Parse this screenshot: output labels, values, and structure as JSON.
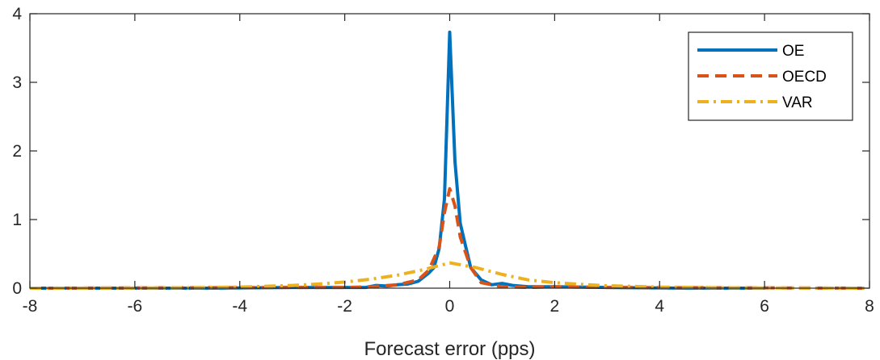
{
  "chart_data": {
    "type": "line",
    "xlabel": "Forecast error (pps)",
    "ylabel": "",
    "xlim": [
      -8,
      8
    ],
    "ylim": [
      0,
      4
    ],
    "xticks": [
      "-8",
      "-6",
      "-4",
      "-2",
      "0",
      "2",
      "4",
      "6",
      "8"
    ],
    "yticks": [
      "0",
      "1",
      "2",
      "3",
      "4"
    ],
    "grid": false,
    "legend_position": "top-right",
    "series": [
      {
        "name": "OE",
        "color": "#0072BD",
        "style": "solid",
        "x": [
          -8,
          -4.5,
          -3,
          -2,
          -1.6,
          -1.4,
          -1.2,
          -1.0,
          -0.8,
          -0.6,
          -0.4,
          -0.3,
          -0.2,
          -0.1,
          0,
          0.1,
          0.2,
          0.3,
          0.4,
          0.6,
          0.8,
          1.0,
          1.2,
          1.5,
          2.0,
          3.0,
          4.5,
          6.0
        ],
        "y": [
          0,
          0,
          0.01,
          0.01,
          0.01,
          0.04,
          0.03,
          0.05,
          0.06,
          0.1,
          0.22,
          0.3,
          0.58,
          1.3,
          3.73,
          1.85,
          0.95,
          0.62,
          0.3,
          0.12,
          0.05,
          0.07,
          0.04,
          0.02,
          0.02,
          0.01,
          0,
          0
        ]
      },
      {
        "name": "OECD",
        "color": "#D95319",
        "style": "dashed",
        "x": [
          -8,
          -3,
          -2,
          -1.5,
          -1.0,
          -0.6,
          -0.4,
          -0.2,
          -0.1,
          0,
          0.1,
          0.2,
          0.4,
          0.6,
          1.0,
          1.5,
          2.0,
          3.0,
          8
        ],
        "y": [
          0,
          0.01,
          0.01,
          0.02,
          0.05,
          0.12,
          0.26,
          0.6,
          1.1,
          1.45,
          1.2,
          0.75,
          0.3,
          0.08,
          0.02,
          0.01,
          0.02,
          0.01,
          0
        ]
      },
      {
        "name": "VAR",
        "color": "#EDB120",
        "style": "dashdot",
        "x": [
          -8,
          -6,
          -5,
          -4,
          -3,
          -2.5,
          -2,
          -1.5,
          -1,
          -0.5,
          0,
          0.5,
          1,
          1.5,
          2,
          2.5,
          3,
          4,
          5,
          6,
          8
        ],
        "y": [
          0,
          0.002,
          0.006,
          0.015,
          0.04,
          0.06,
          0.09,
          0.13,
          0.19,
          0.27,
          0.37,
          0.3,
          0.2,
          0.12,
          0.08,
          0.055,
          0.035,
          0.015,
          0.007,
          0.003,
          0
        ]
      }
    ]
  }
}
